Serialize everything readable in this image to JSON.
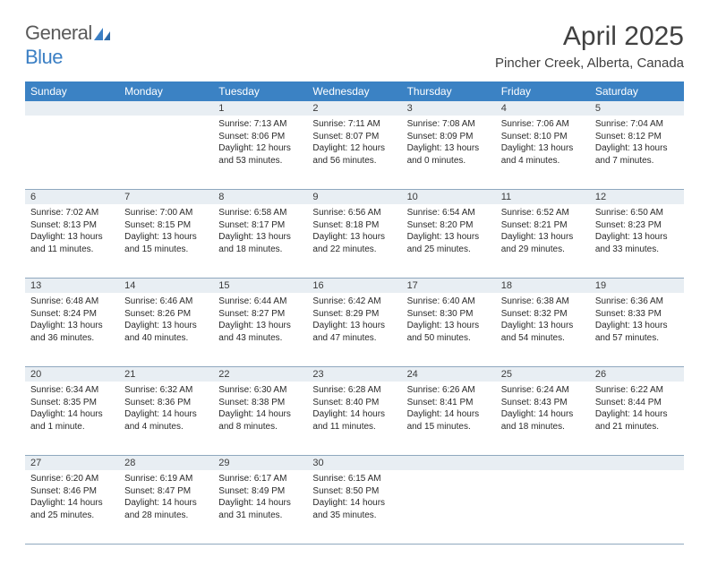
{
  "brand": {
    "part1": "General",
    "part2": "Blue"
  },
  "title": "April 2025",
  "location": "Pincher Creek, Alberta, Canada",
  "colors": {
    "header_bg": "#3b82c4",
    "header_text": "#ffffff",
    "daynum_bg": "#e8eef3",
    "border": "#8fa8bf",
    "title_text": "#414141",
    "logo_gray": "#5a5a5a",
    "logo_blue": "#3b7fc4"
  },
  "weekdays": [
    "Sunday",
    "Monday",
    "Tuesday",
    "Wednesday",
    "Thursday",
    "Friday",
    "Saturday"
  ],
  "weeks": [
    [
      null,
      null,
      {
        "n": "1",
        "sr": "7:13 AM",
        "ss": "8:06 PM",
        "dl": "12 hours and 53 minutes."
      },
      {
        "n": "2",
        "sr": "7:11 AM",
        "ss": "8:07 PM",
        "dl": "12 hours and 56 minutes."
      },
      {
        "n": "3",
        "sr": "7:08 AM",
        "ss": "8:09 PM",
        "dl": "13 hours and 0 minutes."
      },
      {
        "n": "4",
        "sr": "7:06 AM",
        "ss": "8:10 PM",
        "dl": "13 hours and 4 minutes."
      },
      {
        "n": "5",
        "sr": "7:04 AM",
        "ss": "8:12 PM",
        "dl": "13 hours and 7 minutes."
      }
    ],
    [
      {
        "n": "6",
        "sr": "7:02 AM",
        "ss": "8:13 PM",
        "dl": "13 hours and 11 minutes."
      },
      {
        "n": "7",
        "sr": "7:00 AM",
        "ss": "8:15 PM",
        "dl": "13 hours and 15 minutes."
      },
      {
        "n": "8",
        "sr": "6:58 AM",
        "ss": "8:17 PM",
        "dl": "13 hours and 18 minutes."
      },
      {
        "n": "9",
        "sr": "6:56 AM",
        "ss": "8:18 PM",
        "dl": "13 hours and 22 minutes."
      },
      {
        "n": "10",
        "sr": "6:54 AM",
        "ss": "8:20 PM",
        "dl": "13 hours and 25 minutes."
      },
      {
        "n": "11",
        "sr": "6:52 AM",
        "ss": "8:21 PM",
        "dl": "13 hours and 29 minutes."
      },
      {
        "n": "12",
        "sr": "6:50 AM",
        "ss": "8:23 PM",
        "dl": "13 hours and 33 minutes."
      }
    ],
    [
      {
        "n": "13",
        "sr": "6:48 AM",
        "ss": "8:24 PM",
        "dl": "13 hours and 36 minutes."
      },
      {
        "n": "14",
        "sr": "6:46 AM",
        "ss": "8:26 PM",
        "dl": "13 hours and 40 minutes."
      },
      {
        "n": "15",
        "sr": "6:44 AM",
        "ss": "8:27 PM",
        "dl": "13 hours and 43 minutes."
      },
      {
        "n": "16",
        "sr": "6:42 AM",
        "ss": "8:29 PM",
        "dl": "13 hours and 47 minutes."
      },
      {
        "n": "17",
        "sr": "6:40 AM",
        "ss": "8:30 PM",
        "dl": "13 hours and 50 minutes."
      },
      {
        "n": "18",
        "sr": "6:38 AM",
        "ss": "8:32 PM",
        "dl": "13 hours and 54 minutes."
      },
      {
        "n": "19",
        "sr": "6:36 AM",
        "ss": "8:33 PM",
        "dl": "13 hours and 57 minutes."
      }
    ],
    [
      {
        "n": "20",
        "sr": "6:34 AM",
        "ss": "8:35 PM",
        "dl": "14 hours and 1 minute."
      },
      {
        "n": "21",
        "sr": "6:32 AM",
        "ss": "8:36 PM",
        "dl": "14 hours and 4 minutes."
      },
      {
        "n": "22",
        "sr": "6:30 AM",
        "ss": "8:38 PM",
        "dl": "14 hours and 8 minutes."
      },
      {
        "n": "23",
        "sr": "6:28 AM",
        "ss": "8:40 PM",
        "dl": "14 hours and 11 minutes."
      },
      {
        "n": "24",
        "sr": "6:26 AM",
        "ss": "8:41 PM",
        "dl": "14 hours and 15 minutes."
      },
      {
        "n": "25",
        "sr": "6:24 AM",
        "ss": "8:43 PM",
        "dl": "14 hours and 18 minutes."
      },
      {
        "n": "26",
        "sr": "6:22 AM",
        "ss": "8:44 PM",
        "dl": "14 hours and 21 minutes."
      }
    ],
    [
      {
        "n": "27",
        "sr": "6:20 AM",
        "ss": "8:46 PM",
        "dl": "14 hours and 25 minutes."
      },
      {
        "n": "28",
        "sr": "6:19 AM",
        "ss": "8:47 PM",
        "dl": "14 hours and 28 minutes."
      },
      {
        "n": "29",
        "sr": "6:17 AM",
        "ss": "8:49 PM",
        "dl": "14 hours and 31 minutes."
      },
      {
        "n": "30",
        "sr": "6:15 AM",
        "ss": "8:50 PM",
        "dl": "14 hours and 35 minutes."
      },
      null,
      null,
      null
    ]
  ],
  "labels": {
    "sunrise": "Sunrise:",
    "sunset": "Sunset:",
    "daylight": "Daylight:"
  }
}
